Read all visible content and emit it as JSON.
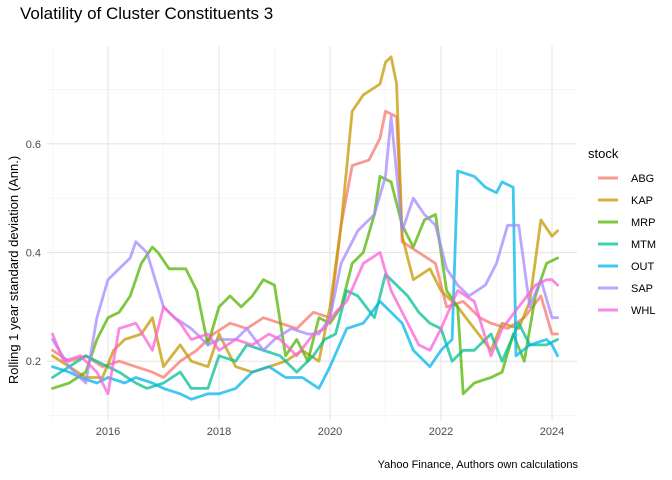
{
  "chart_data": {
    "type": "line",
    "title": "Volatility of Cluster Constituents 3",
    "caption": "Yahoo Finance, Authors own calculations",
    "xlabel": "",
    "ylabel": "Rolling 1 year standard deviation (Ann.)",
    "x_ticks": [
      "2016",
      "2018",
      "2020",
      "2022",
      "2024"
    ],
    "y_ticks": [
      "0.2",
      "0.4",
      "0.6"
    ],
    "xlim": [
      2014.9,
      2024.45
    ],
    "ylim": [
      0.09,
      0.78
    ],
    "grid": true,
    "legend_title": "stock",
    "legend_position": "right",
    "series": [
      {
        "name": "ABG",
        "color": "#F8766D",
        "points": [
          [
            2015.0,
            0.22
          ],
          [
            2015.3,
            0.2
          ],
          [
            2015.6,
            0.21
          ],
          [
            2015.9,
            0.19
          ],
          [
            2016.2,
            0.2
          ],
          [
            2016.5,
            0.19
          ],
          [
            2016.8,
            0.18
          ],
          [
            2017.0,
            0.17
          ],
          [
            2017.3,
            0.2
          ],
          [
            2017.6,
            0.22
          ],
          [
            2017.9,
            0.25
          ],
          [
            2018.2,
            0.27
          ],
          [
            2018.5,
            0.26
          ],
          [
            2018.8,
            0.28
          ],
          [
            2019.1,
            0.27
          ],
          [
            2019.4,
            0.26
          ],
          [
            2019.7,
            0.29
          ],
          [
            2020.0,
            0.28
          ],
          [
            2020.2,
            0.45
          ],
          [
            2020.4,
            0.56
          ],
          [
            2020.7,
            0.57
          ],
          [
            2020.9,
            0.61
          ],
          [
            2021.0,
            0.66
          ],
          [
            2021.2,
            0.65
          ],
          [
            2021.3,
            0.42
          ],
          [
            2021.6,
            0.4
          ],
          [
            2021.9,
            0.38
          ],
          [
            2022.1,
            0.3
          ],
          [
            2022.4,
            0.31
          ],
          [
            2022.7,
            0.28
          ],
          [
            2022.9,
            0.27
          ],
          [
            2023.2,
            0.26
          ],
          [
            2023.5,
            0.28
          ],
          [
            2023.8,
            0.32
          ],
          [
            2024.0,
            0.25
          ],
          [
            2024.1,
            0.25
          ]
        ]
      },
      {
        "name": "KAP",
        "color": "#C49A00",
        "points": [
          [
            2015.0,
            0.21
          ],
          [
            2015.3,
            0.19
          ],
          [
            2015.6,
            0.17
          ],
          [
            2015.9,
            0.17
          ],
          [
            2016.1,
            0.22
          ],
          [
            2016.3,
            0.24
          ],
          [
            2016.6,
            0.25
          ],
          [
            2016.8,
            0.28
          ],
          [
            2017.0,
            0.19
          ],
          [
            2017.3,
            0.23
          ],
          [
            2017.5,
            0.2
          ],
          [
            2017.8,
            0.19
          ],
          [
            2018.0,
            0.25
          ],
          [
            2018.3,
            0.19
          ],
          [
            2018.6,
            0.18
          ],
          [
            2018.9,
            0.19
          ],
          [
            2019.2,
            0.2
          ],
          [
            2019.5,
            0.22
          ],
          [
            2019.8,
            0.2
          ],
          [
            2020.0,
            0.3
          ],
          [
            2020.2,
            0.45
          ],
          [
            2020.4,
            0.66
          ],
          [
            2020.6,
            0.69
          ],
          [
            2020.9,
            0.71
          ],
          [
            2021.0,
            0.75
          ],
          [
            2021.1,
            0.76
          ],
          [
            2021.2,
            0.71
          ],
          [
            2021.3,
            0.43
          ],
          [
            2021.5,
            0.35
          ],
          [
            2021.8,
            0.37
          ],
          [
            2022.0,
            0.33
          ],
          [
            2022.3,
            0.3
          ],
          [
            2022.6,
            0.26
          ],
          [
            2022.9,
            0.22
          ],
          [
            2023.1,
            0.27
          ],
          [
            2023.4,
            0.26
          ],
          [
            2023.6,
            0.31
          ],
          [
            2023.8,
            0.46
          ],
          [
            2024.0,
            0.43
          ],
          [
            2024.1,
            0.44
          ]
        ]
      },
      {
        "name": "MRP",
        "color": "#53B400",
        "points": [
          [
            2015.0,
            0.15
          ],
          [
            2015.3,
            0.16
          ],
          [
            2015.6,
            0.18
          ],
          [
            2015.8,
            0.24
          ],
          [
            2016.0,
            0.28
          ],
          [
            2016.2,
            0.29
          ],
          [
            2016.4,
            0.32
          ],
          [
            2016.6,
            0.38
          ],
          [
            2016.8,
            0.41
          ],
          [
            2016.9,
            0.4
          ],
          [
            2017.1,
            0.37
          ],
          [
            2017.4,
            0.37
          ],
          [
            2017.6,
            0.33
          ],
          [
            2017.8,
            0.23
          ],
          [
            2018.0,
            0.3
          ],
          [
            2018.2,
            0.32
          ],
          [
            2018.4,
            0.3
          ],
          [
            2018.6,
            0.32
          ],
          [
            2018.8,
            0.35
          ],
          [
            2019.0,
            0.34
          ],
          [
            2019.2,
            0.21
          ],
          [
            2019.4,
            0.24
          ],
          [
            2019.6,
            0.2
          ],
          [
            2019.8,
            0.28
          ],
          [
            2020.0,
            0.27
          ],
          [
            2020.2,
            0.3
          ],
          [
            2020.4,
            0.38
          ],
          [
            2020.6,
            0.4
          ],
          [
            2020.8,
            0.47
          ],
          [
            2020.9,
            0.54
          ],
          [
            2021.1,
            0.53
          ],
          [
            2021.3,
            0.45
          ],
          [
            2021.5,
            0.41
          ],
          [
            2021.7,
            0.46
          ],
          [
            2021.9,
            0.47
          ],
          [
            2022.1,
            0.33
          ],
          [
            2022.3,
            0.3
          ],
          [
            2022.4,
            0.14
          ],
          [
            2022.6,
            0.16
          ],
          [
            2022.9,
            0.17
          ],
          [
            2023.1,
            0.18
          ],
          [
            2023.3,
            0.25
          ],
          [
            2023.5,
            0.2
          ],
          [
            2023.7,
            0.32
          ],
          [
            2023.9,
            0.38
          ],
          [
            2024.1,
            0.39
          ]
        ]
      },
      {
        "name": "MTM",
        "color": "#00C094",
        "points": [
          [
            2015.0,
            0.17
          ],
          [
            2015.3,
            0.19
          ],
          [
            2015.6,
            0.21
          ],
          [
            2015.8,
            0.2
          ],
          [
            2016.0,
            0.19
          ],
          [
            2016.2,
            0.18
          ],
          [
            2016.5,
            0.16
          ],
          [
            2016.7,
            0.15
          ],
          [
            2017.0,
            0.16
          ],
          [
            2017.3,
            0.18
          ],
          [
            2017.5,
            0.15
          ],
          [
            2017.8,
            0.15
          ],
          [
            2018.0,
            0.21
          ],
          [
            2018.3,
            0.2
          ],
          [
            2018.5,
            0.23
          ],
          [
            2018.8,
            0.22
          ],
          [
            2019.1,
            0.21
          ],
          [
            2019.4,
            0.18
          ],
          [
            2019.7,
            0.21
          ],
          [
            2019.9,
            0.24
          ],
          [
            2020.1,
            0.25
          ],
          [
            2020.3,
            0.33
          ],
          [
            2020.5,
            0.32
          ],
          [
            2020.8,
            0.28
          ],
          [
            2021.0,
            0.36
          ],
          [
            2021.2,
            0.34
          ],
          [
            2021.4,
            0.32
          ],
          [
            2021.6,
            0.29
          ],
          [
            2021.8,
            0.27
          ],
          [
            2022.0,
            0.26
          ],
          [
            2022.2,
            0.2
          ],
          [
            2022.4,
            0.22
          ],
          [
            2022.6,
            0.22
          ],
          [
            2022.9,
            0.25
          ],
          [
            2023.1,
            0.2
          ],
          [
            2023.4,
            0.27
          ],
          [
            2023.6,
            0.23
          ],
          [
            2023.9,
            0.23
          ],
          [
            2024.1,
            0.24
          ]
        ]
      },
      {
        "name": "OUT",
        "color": "#00B6EB",
        "points": [
          [
            2015.0,
            0.19
          ],
          [
            2015.3,
            0.18
          ],
          [
            2015.5,
            0.17
          ],
          [
            2015.8,
            0.16
          ],
          [
            2016.0,
            0.17
          ],
          [
            2016.3,
            0.16
          ],
          [
            2016.5,
            0.17
          ],
          [
            2016.8,
            0.16
          ],
          [
            2017.0,
            0.15
          ],
          [
            2017.3,
            0.14
          ],
          [
            2017.5,
            0.13
          ],
          [
            2017.8,
            0.14
          ],
          [
            2018.0,
            0.14
          ],
          [
            2018.3,
            0.15
          ],
          [
            2018.6,
            0.18
          ],
          [
            2018.9,
            0.19
          ],
          [
            2019.2,
            0.17
          ],
          [
            2019.5,
            0.17
          ],
          [
            2019.8,
            0.15
          ],
          [
            2020.0,
            0.19
          ],
          [
            2020.3,
            0.26
          ],
          [
            2020.6,
            0.27
          ],
          [
            2020.9,
            0.31
          ],
          [
            2021.1,
            0.29
          ],
          [
            2021.3,
            0.27
          ],
          [
            2021.5,
            0.22
          ],
          [
            2021.8,
            0.19
          ],
          [
            2022.0,
            0.22
          ],
          [
            2022.2,
            0.24
          ],
          [
            2022.3,
            0.55
          ],
          [
            2022.6,
            0.54
          ],
          [
            2022.8,
            0.52
          ],
          [
            2023.0,
            0.51
          ],
          [
            2023.1,
            0.53
          ],
          [
            2023.3,
            0.52
          ],
          [
            2023.35,
            0.21
          ],
          [
            2023.6,
            0.23
          ],
          [
            2023.9,
            0.24
          ],
          [
            2024.0,
            0.23
          ],
          [
            2024.1,
            0.21
          ]
        ]
      },
      {
        "name": "SAP",
        "color": "#A58AFF",
        "points": [
          [
            2015.0,
            0.24
          ],
          [
            2015.3,
            0.19
          ],
          [
            2015.6,
            0.16
          ],
          [
            2015.8,
            0.28
          ],
          [
            2016.0,
            0.35
          ],
          [
            2016.2,
            0.37
          ],
          [
            2016.4,
            0.39
          ],
          [
            2016.5,
            0.42
          ],
          [
            2016.7,
            0.4
          ],
          [
            2017.0,
            0.3
          ],
          [
            2017.2,
            0.28
          ],
          [
            2017.5,
            0.26
          ],
          [
            2017.8,
            0.23
          ],
          [
            2018.0,
            0.24
          ],
          [
            2018.3,
            0.24
          ],
          [
            2018.5,
            0.26
          ],
          [
            2018.8,
            0.22
          ],
          [
            2019.0,
            0.24
          ],
          [
            2019.3,
            0.26
          ],
          [
            2019.6,
            0.25
          ],
          [
            2019.8,
            0.25
          ],
          [
            2020.0,
            0.28
          ],
          [
            2020.2,
            0.38
          ],
          [
            2020.5,
            0.44
          ],
          [
            2020.8,
            0.47
          ],
          [
            2021.0,
            0.54
          ],
          [
            2021.1,
            0.65
          ],
          [
            2021.3,
            0.44
          ],
          [
            2021.5,
            0.5
          ],
          [
            2021.7,
            0.47
          ],
          [
            2021.9,
            0.45
          ],
          [
            2022.1,
            0.37
          ],
          [
            2022.3,
            0.34
          ],
          [
            2022.5,
            0.32
          ],
          [
            2022.8,
            0.34
          ],
          [
            2023.0,
            0.38
          ],
          [
            2023.2,
            0.45
          ],
          [
            2023.4,
            0.45
          ],
          [
            2023.6,
            0.3
          ],
          [
            2023.8,
            0.35
          ],
          [
            2024.0,
            0.28
          ],
          [
            2024.1,
            0.28
          ]
        ]
      },
      {
        "name": "WHL",
        "color": "#FB61D7",
        "points": [
          [
            2015.0,
            0.25
          ],
          [
            2015.2,
            0.2
          ],
          [
            2015.5,
            0.21
          ],
          [
            2015.8,
            0.18
          ],
          [
            2016.0,
            0.14
          ],
          [
            2016.2,
            0.26
          ],
          [
            2016.5,
            0.27
          ],
          [
            2016.8,
            0.22
          ],
          [
            2017.0,
            0.3
          ],
          [
            2017.3,
            0.27
          ],
          [
            2017.5,
            0.24
          ],
          [
            2017.8,
            0.25
          ],
          [
            2018.0,
            0.22
          ],
          [
            2018.3,
            0.24
          ],
          [
            2018.6,
            0.23
          ],
          [
            2018.9,
            0.25
          ],
          [
            2019.1,
            0.24
          ],
          [
            2019.4,
            0.21
          ],
          [
            2019.7,
            0.25
          ],
          [
            2019.9,
            0.26
          ],
          [
            2020.1,
            0.29
          ],
          [
            2020.3,
            0.31
          ],
          [
            2020.6,
            0.38
          ],
          [
            2020.9,
            0.4
          ],
          [
            2021.1,
            0.33
          ],
          [
            2021.3,
            0.29
          ],
          [
            2021.6,
            0.23
          ],
          [
            2021.8,
            0.22
          ],
          [
            2022.0,
            0.26
          ],
          [
            2022.3,
            0.33
          ],
          [
            2022.6,
            0.31
          ],
          [
            2022.9,
            0.21
          ],
          [
            2023.1,
            0.26
          ],
          [
            2023.4,
            0.3
          ],
          [
            2023.7,
            0.34
          ],
          [
            2023.9,
            0.35
          ],
          [
            2024.0,
            0.35
          ],
          [
            2024.1,
            0.34
          ]
        ]
      }
    ]
  }
}
